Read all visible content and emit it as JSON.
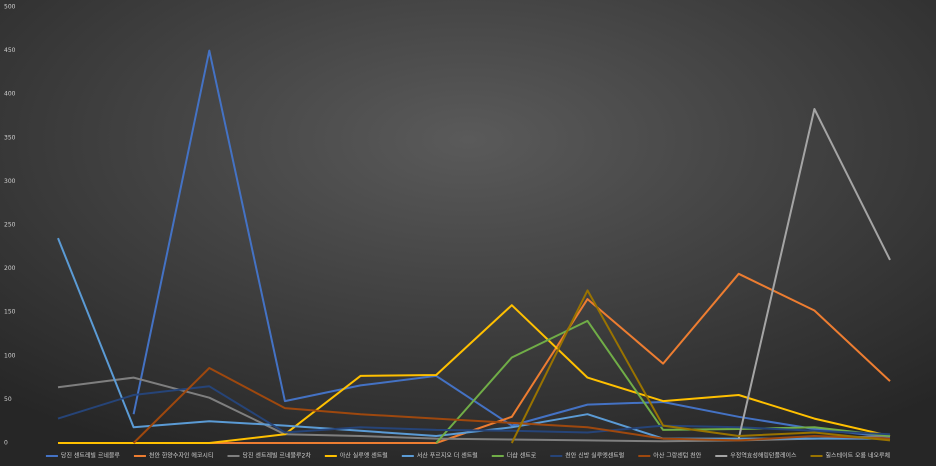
{
  "chart_data": {
    "type": "line",
    "categories": [
      null,
      null,
      null,
      null,
      null,
      null,
      null,
      null,
      null,
      null,
      null,
      null
    ],
    "ylim": [
      0,
      500
    ],
    "yticks": [
      0,
      50,
      100,
      150,
      200,
      250,
      300,
      350,
      400,
      450,
      500
    ],
    "grid": false,
    "legend": "bottom",
    "series": [
      {
        "name": "당진 센트레빌 르네블루",
        "color": "#4472c4",
        "values": [
          null,
          33,
          450,
          48,
          66,
          77,
          20,
          44,
          47,
          30,
          16,
          7
        ]
      },
      {
        "name": "천안 한양수자인 에코시티",
        "color": "#ed7d31",
        "values": [
          0,
          0,
          0,
          0,
          0,
          0,
          30,
          165,
          91,
          194,
          152,
          71
        ]
      },
      {
        "name": "당진 센트레빌 르네블루2차",
        "color": "#7f7f7f",
        "values": [
          64,
          75,
          52,
          10,
          8,
          5,
          4,
          3,
          2,
          3,
          5,
          8
        ]
      },
      {
        "name": "아산 실루엣 센트럴",
        "color": "#ffc000",
        "values": [
          0,
          0,
          0,
          10,
          77,
          78,
          158,
          75,
          48,
          55,
          28,
          8
        ]
      },
      {
        "name": "서산 푸르지오 더 센트럴",
        "color": "#5b9bd5",
        "values": [
          235,
          18,
          25,
          20,
          14,
          8,
          18,
          33,
          5,
          5,
          5,
          5
        ]
      },
      {
        "name": "더샵 센트로",
        "color": "#70ad47",
        "values": [
          null,
          null,
          null,
          null,
          null,
          0,
          98,
          140,
          15,
          16,
          18,
          8
        ]
      },
      {
        "name": "천안 신방 실루엣센트럴",
        "color": "#264478",
        "values": [
          28,
          55,
          65,
          12,
          18,
          15,
          14,
          12,
          20,
          18,
          14,
          10
        ]
      },
      {
        "name": "아산 그랑센텀 천안",
        "color": "#9e480e",
        "values": [
          null,
          0,
          86,
          40,
          33,
          28,
          23,
          18,
          5,
          3,
          8,
          5
        ]
      },
      {
        "name": "우정역효성해링턴플레이스",
        "color": "#a5a5a5",
        "values": [
          null,
          null,
          null,
          null,
          null,
          null,
          null,
          null,
          null,
          5,
          383,
          210
        ]
      },
      {
        "name": "힐스테이트 오룡 네오루체",
        "color": "#997300",
        "values": [
          null,
          null,
          null,
          null,
          null,
          null,
          0,
          175,
          20,
          8,
          12,
          3
        ]
      }
    ]
  }
}
